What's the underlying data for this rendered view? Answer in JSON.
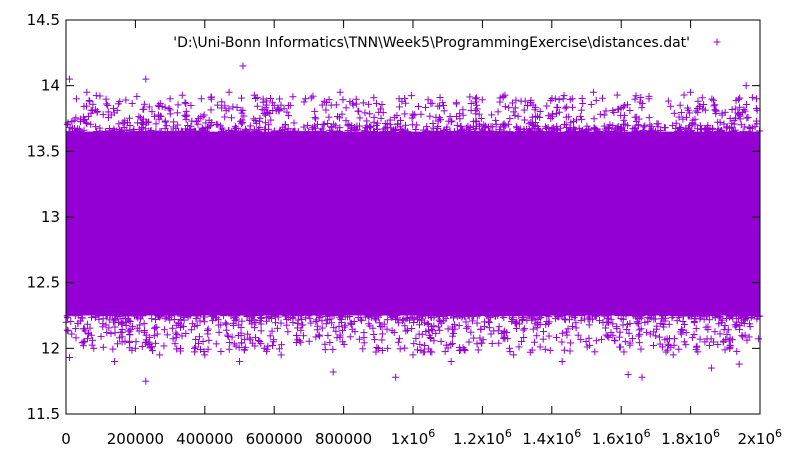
{
  "chart_data": {
    "type": "scatter",
    "title": "",
    "xlabel": "",
    "ylabel": "",
    "xlim": [
      0,
      2000000
    ],
    "ylim": [
      11.5,
      14.5
    ],
    "x_ticks": [
      {
        "value": 0,
        "label": "0",
        "exp": ""
      },
      {
        "value": 200000,
        "label": "200000",
        "exp": ""
      },
      {
        "value": 400000,
        "label": "400000",
        "exp": ""
      },
      {
        "value": 600000,
        "label": "600000",
        "exp": ""
      },
      {
        "value": 800000,
        "label": "800000",
        "exp": ""
      },
      {
        "value": 1000000,
        "label": "1x10",
        "exp": "6"
      },
      {
        "value": 1200000,
        "label": "1.2x10",
        "exp": "6"
      },
      {
        "value": 1400000,
        "label": "1.4x10",
        "exp": "6"
      },
      {
        "value": 1600000,
        "label": "1.6x10",
        "exp": "6"
      },
      {
        "value": 1800000,
        "label": "1.8x10",
        "exp": "6"
      },
      {
        "value": 2000000,
        "label": "2x10",
        "exp": "6"
      }
    ],
    "y_ticks": [
      {
        "value": 11.5,
        "label": "11.5"
      },
      {
        "value": 12,
        "label": "12"
      },
      {
        "value": 12.5,
        "label": "12.5"
      },
      {
        "value": 13,
        "label": "13"
      },
      {
        "value": 13.5,
        "label": "13.5"
      },
      {
        "value": 14,
        "label": "14"
      },
      {
        "value": 14.5,
        "label": "14.5"
      }
    ],
    "grid": false,
    "legend_position": "top-right",
    "series": [
      {
        "name": "'D:\\Uni-Bonn Informatics\\TNN\\Week5\\ProgrammingExercise\\distances.dat'",
        "color": "#9400d3",
        "marker": "plus",
        "x_range": [
          0,
          2000000
        ],
        "dense_band": [
          12.25,
          13.65
        ],
        "outliers": [
          [
            10000,
            14.05
          ],
          [
            30000,
            13.9
          ],
          [
            60000,
            13.95
          ],
          [
            120000,
            13.85
          ],
          [
            230000,
            14.05
          ],
          [
            300000,
            13.9
          ],
          [
            390000,
            13.9
          ],
          [
            470000,
            13.95
          ],
          [
            510000,
            14.15
          ],
          [
            600000,
            13.85
          ],
          [
            690000,
            13.9
          ],
          [
            790000,
            13.95
          ],
          [
            960000,
            13.9
          ],
          [
            1180000,
            13.9
          ],
          [
            1330000,
            13.85
          ],
          [
            1410000,
            13.9
          ],
          [
            1520000,
            13.95
          ],
          [
            1610000,
            13.85
          ],
          [
            1680000,
            13.9
          ],
          [
            1800000,
            13.95
          ],
          [
            1960000,
            14.0
          ],
          [
            1990000,
            13.9
          ],
          [
            10000,
            11.93
          ],
          [
            80000,
            12.0
          ],
          [
            140000,
            11.9
          ],
          [
            200000,
            12.0
          ],
          [
            230000,
            11.75
          ],
          [
            270000,
            11.95
          ],
          [
            330000,
            12.0
          ],
          [
            400000,
            11.95
          ],
          [
            500000,
            11.9
          ],
          [
            620000,
            11.95
          ],
          [
            770000,
            11.82
          ],
          [
            950000,
            11.78
          ],
          [
            1000000,
            11.95
          ],
          [
            1110000,
            11.9
          ],
          [
            1290000,
            11.95
          ],
          [
            1430000,
            11.9
          ],
          [
            1620000,
            11.8
          ],
          [
            1660000,
            11.78
          ],
          [
            1750000,
            11.95
          ],
          [
            1860000,
            11.85
          ],
          [
            1940000,
            11.88
          ]
        ]
      }
    ]
  }
}
